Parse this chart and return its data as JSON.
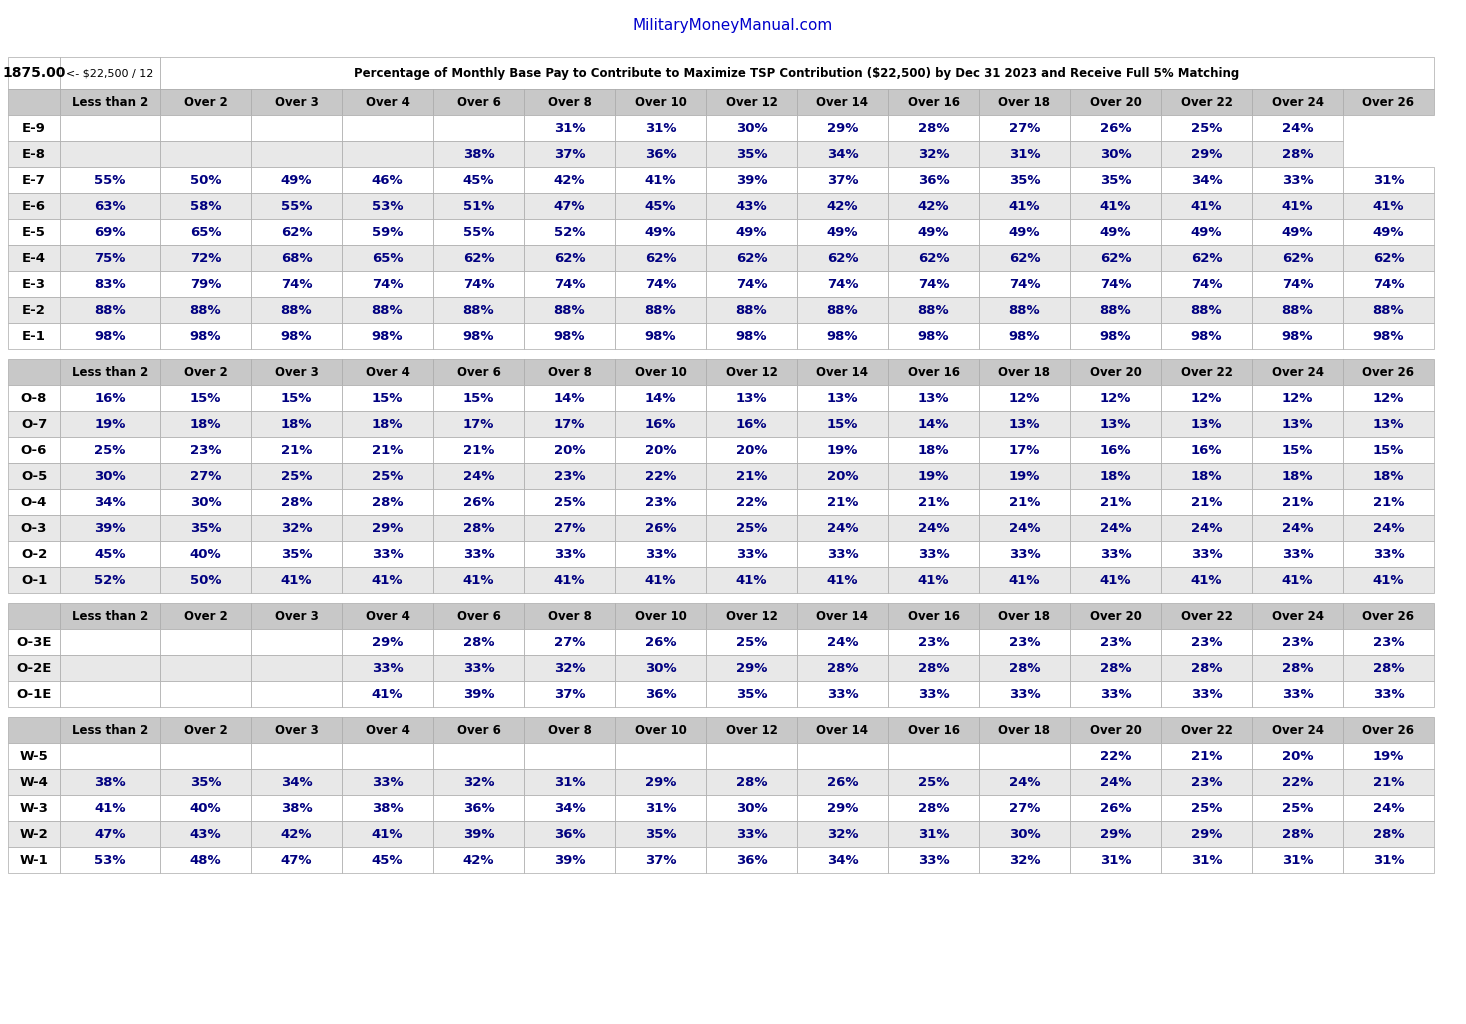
{
  "website": "MilitaryMoneyManual.com",
  "header_left1": "1875.00",
  "header_left2": "<- $22,500 / 12",
  "header_main": "Percentage of Monthly Base Pay to Contribute to Maximize TSP Contribution ($22,500) by Dec 31 2023 and Receive Full 5% Matching",
  "col_headers": [
    "Less than 2",
    "Over 2",
    "Over 3",
    "Over 4",
    "Over 6",
    "Over 8",
    "Over 10",
    "Over 12",
    "Over 14",
    "Over 16",
    "Over 18",
    "Over 20",
    "Over 22",
    "Over 24",
    "Over 26"
  ],
  "enlisted_rows": [
    [
      "E-9",
      "",
      "",
      "",
      "",
      "",
      "31%",
      "31%",
      "30%",
      "29%",
      "28%",
      "27%",
      "26%",
      "25%",
      "24%"
    ],
    [
      "E-8",
      "",
      "",
      "",
      "",
      "38%",
      "37%",
      "36%",
      "35%",
      "34%",
      "32%",
      "31%",
      "30%",
      "29%",
      "28%"
    ],
    [
      "E-7",
      "55%",
      "50%",
      "49%",
      "46%",
      "45%",
      "42%",
      "41%",
      "39%",
      "37%",
      "36%",
      "35%",
      "35%",
      "34%",
      "33%",
      "31%"
    ],
    [
      "E-6",
      "63%",
      "58%",
      "55%",
      "53%",
      "51%",
      "47%",
      "45%",
      "43%",
      "42%",
      "42%",
      "41%",
      "41%",
      "41%",
      "41%",
      "41%"
    ],
    [
      "E-5",
      "69%",
      "65%",
      "62%",
      "59%",
      "55%",
      "52%",
      "49%",
      "49%",
      "49%",
      "49%",
      "49%",
      "49%",
      "49%",
      "49%",
      "49%"
    ],
    [
      "E-4",
      "75%",
      "72%",
      "68%",
      "65%",
      "62%",
      "62%",
      "62%",
      "62%",
      "62%",
      "62%",
      "62%",
      "62%",
      "62%",
      "62%",
      "62%"
    ],
    [
      "E-3",
      "83%",
      "79%",
      "74%",
      "74%",
      "74%",
      "74%",
      "74%",
      "74%",
      "74%",
      "74%",
      "74%",
      "74%",
      "74%",
      "74%",
      "74%"
    ],
    [
      "E-2",
      "88%",
      "88%",
      "88%",
      "88%",
      "88%",
      "88%",
      "88%",
      "88%",
      "88%",
      "88%",
      "88%",
      "88%",
      "88%",
      "88%",
      "88%"
    ],
    [
      "E-1",
      "98%",
      "98%",
      "98%",
      "98%",
      "98%",
      "98%",
      "98%",
      "98%",
      "98%",
      "98%",
      "98%",
      "98%",
      "98%",
      "98%",
      "98%"
    ]
  ],
  "officer_rows": [
    [
      "O-8",
      "16%",
      "15%",
      "15%",
      "15%",
      "15%",
      "14%",
      "14%",
      "13%",
      "13%",
      "13%",
      "12%",
      "12%",
      "12%",
      "12%",
      "12%"
    ],
    [
      "O-7",
      "19%",
      "18%",
      "18%",
      "18%",
      "17%",
      "17%",
      "16%",
      "16%",
      "15%",
      "14%",
      "13%",
      "13%",
      "13%",
      "13%",
      "13%"
    ],
    [
      "O-6",
      "25%",
      "23%",
      "21%",
      "21%",
      "21%",
      "20%",
      "20%",
      "20%",
      "19%",
      "18%",
      "17%",
      "16%",
      "16%",
      "15%",
      "15%"
    ],
    [
      "O-5",
      "30%",
      "27%",
      "25%",
      "25%",
      "24%",
      "23%",
      "22%",
      "21%",
      "20%",
      "19%",
      "19%",
      "18%",
      "18%",
      "18%",
      "18%"
    ],
    [
      "O-4",
      "34%",
      "30%",
      "28%",
      "28%",
      "26%",
      "25%",
      "23%",
      "22%",
      "21%",
      "21%",
      "21%",
      "21%",
      "21%",
      "21%",
      "21%"
    ],
    [
      "O-3",
      "39%",
      "35%",
      "32%",
      "29%",
      "28%",
      "27%",
      "26%",
      "25%",
      "24%",
      "24%",
      "24%",
      "24%",
      "24%",
      "24%",
      "24%"
    ],
    [
      "O-2",
      "45%",
      "40%",
      "35%",
      "33%",
      "33%",
      "33%",
      "33%",
      "33%",
      "33%",
      "33%",
      "33%",
      "33%",
      "33%",
      "33%",
      "33%"
    ],
    [
      "O-1",
      "52%",
      "50%",
      "41%",
      "41%",
      "41%",
      "41%",
      "41%",
      "41%",
      "41%",
      "41%",
      "41%",
      "41%",
      "41%",
      "41%",
      "41%"
    ]
  ],
  "warrant_e_rows": [
    [
      "O-3E",
      "",
      "",
      "",
      "29%",
      "28%",
      "27%",
      "26%",
      "25%",
      "24%",
      "23%",
      "23%",
      "23%",
      "23%",
      "23%",
      "23%"
    ],
    [
      "O-2E",
      "",
      "",
      "",
      "33%",
      "33%",
      "32%",
      "30%",
      "29%",
      "28%",
      "28%",
      "28%",
      "28%",
      "28%",
      "28%",
      "28%"
    ],
    [
      "O-1E",
      "",
      "",
      "",
      "41%",
      "39%",
      "37%",
      "36%",
      "35%",
      "33%",
      "33%",
      "33%",
      "33%",
      "33%",
      "33%",
      "33%"
    ]
  ],
  "warrant_rows": [
    [
      "W-5",
      "",
      "",
      "",
      "",
      "",
      "",
      "",
      "",
      "",
      "",
      "",
      "22%",
      "21%",
      "20%",
      "19%"
    ],
    [
      "W-4",
      "38%",
      "35%",
      "34%",
      "33%",
      "32%",
      "31%",
      "29%",
      "28%",
      "26%",
      "25%",
      "24%",
      "24%",
      "23%",
      "22%",
      "21%"
    ],
    [
      "W-3",
      "41%",
      "40%",
      "38%",
      "38%",
      "36%",
      "34%",
      "31%",
      "30%",
      "29%",
      "28%",
      "27%",
      "26%",
      "25%",
      "25%",
      "24%"
    ],
    [
      "W-2",
      "47%",
      "43%",
      "42%",
      "41%",
      "39%",
      "36%",
      "35%",
      "33%",
      "32%",
      "31%",
      "30%",
      "29%",
      "29%",
      "28%",
      "28%"
    ],
    [
      "W-1",
      "53%",
      "48%",
      "47%",
      "45%",
      "42%",
      "39%",
      "37%",
      "36%",
      "34%",
      "33%",
      "32%",
      "31%",
      "31%",
      "31%",
      "31%"
    ]
  ],
  "header_bg": "#c8c8c8",
  "row_bg_white": "#ffffff",
  "row_bg_light": "#e8e8e8",
  "border_color": "#aaaaaa",
  "website_color": "#0000cc",
  "label_color": "#000000",
  "data_color": "#000080",
  "header_text_color": "#000000"
}
